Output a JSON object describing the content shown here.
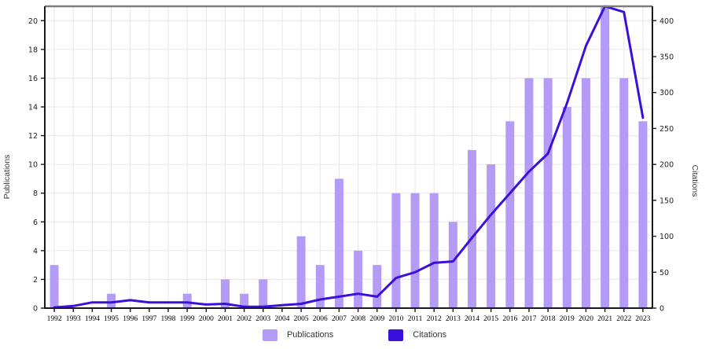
{
  "chart_data": {
    "type": "combo-bar-line",
    "title": "",
    "categories": [
      "1992",
      "1993",
      "1994",
      "1995",
      "1996",
      "1997",
      "1998",
      "1999",
      "2000",
      "2001",
      "2002",
      "2003",
      "2004",
      "2005",
      "2006",
      "2007",
      "2008",
      "2009",
      "2010",
      "2011",
      "2012",
      "2013",
      "2014",
      "2015",
      "2016",
      "2017",
      "2018",
      "2019",
      "2020",
      "2021",
      "2022",
      "2023"
    ],
    "series": [
      {
        "name": "Publications",
        "type": "bar",
        "axis": "left",
        "color": "#b49bf5",
        "values": [
          3,
          0,
          0,
          1,
          0,
          0,
          0,
          1,
          0,
          2,
          1,
          2,
          0,
          5,
          3,
          9,
          4,
          3,
          8,
          8,
          8,
          6,
          11,
          10,
          13,
          16,
          16,
          14,
          16,
          21,
          16,
          13
        ]
      },
      {
        "name": "Citations",
        "type": "line",
        "axis": "right",
        "color": "#3c10dc",
        "values": [
          1,
          3,
          8,
          8,
          11,
          8,
          8,
          8,
          5,
          6,
          2,
          2,
          4,
          6,
          12,
          16,
          20,
          16,
          42,
          50,
          63,
          65,
          98,
          130,
          160,
          190,
          215,
          285,
          365,
          420,
          412,
          265
        ]
      }
    ],
    "left_axis": {
      "label": "Publications",
      "ticks": [
        0,
        2,
        4,
        6,
        8,
        10,
        12,
        14,
        16,
        18,
        20
      ],
      "max": 21
    },
    "right_axis": {
      "label": "Citations",
      "ticks": [
        0,
        50,
        100,
        150,
        200,
        250,
        300,
        350,
        400
      ],
      "max": 420
    },
    "legend": {
      "position": "bottom",
      "items": [
        "Publications",
        "Citations"
      ]
    },
    "grid": true
  }
}
